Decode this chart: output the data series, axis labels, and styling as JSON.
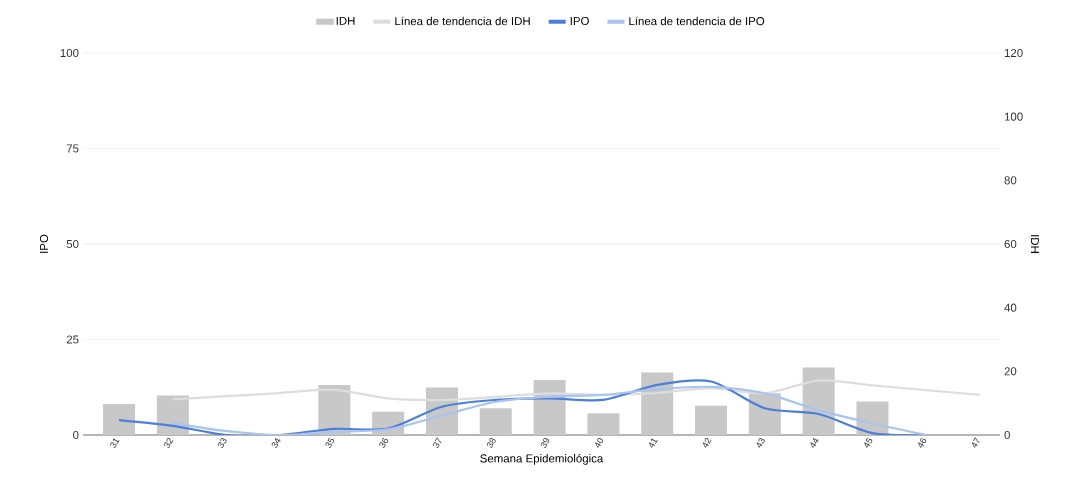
{
  "chart_data": {
    "type": "bar",
    "xlabel": "Semana Epidemiológica",
    "ylabel": "IPO",
    "y2label": "IDH",
    "categories": [
      "31",
      "32",
      "33",
      "34",
      "35",
      "36",
      "37",
      "38",
      "39",
      "40",
      "41",
      "42",
      "43",
      "44",
      "45",
      "46",
      "47"
    ],
    "series": [
      {
        "name": "IDH",
        "axis": "y2",
        "color": "#c8c8c8",
        "values": [
          9.7,
          12.4,
          0,
          0,
          15.7,
          7.3,
          14.9,
          8.4,
          17.3,
          6.8,
          19.6,
          9.2,
          13.1,
          21.2,
          10.5,
          0,
          0
        ]
      },
      {
        "name": "Línea de tendencia de IDH",
        "type": "line",
        "axis": "y2",
        "color": "#dddddd",
        "values": [
          null,
          11.2,
          12.2,
          13.2,
          14.2,
          11.5,
          11,
          12,
          13.1,
          12.6,
          13.2,
          14.7,
          13.1,
          17.1,
          15.6,
          14.1,
          12.6
        ]
      },
      {
        "name": "IPO",
        "type": "line",
        "axis": "y",
        "color": "#4a7fdc",
        "values": [
          3.9,
          2.4,
          0,
          0,
          1.6,
          1.7,
          7.4,
          9.2,
          9.6,
          9.2,
          13.1,
          14,
          7,
          5.5,
          0.5,
          0,
          null
        ]
      },
      {
        "name": "Línea de tendencia de IPO",
        "type": "line",
        "axis": "y",
        "color": "#a9c4ee",
        "values": [
          null,
          3.1,
          1,
          0,
          0.8,
          1.5,
          5.1,
          8.7,
          10,
          10.5,
          12,
          12.6,
          10.9,
          6.5,
          3,
          0,
          null
        ]
      }
    ],
    "ylim": [
      0,
      100
    ],
    "yticks": [
      0,
      25,
      50,
      75,
      100
    ],
    "y2lim": [
      0,
      120
    ],
    "y2ticks": [
      0,
      20,
      40,
      60,
      80,
      100,
      120
    ],
    "grid": "y",
    "legend": "top",
    "marker": "none",
    "line_style": "solid"
  }
}
